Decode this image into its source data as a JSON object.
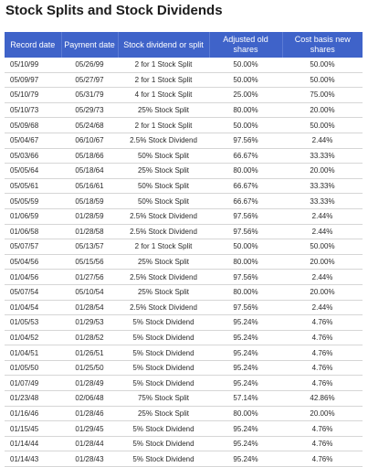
{
  "title": "Stock Splits and Stock Dividends",
  "columns": [
    "Record date",
    "Payment date",
    "Stock dividend or split",
    "Adjusted old shares",
    "Cost basis new shares"
  ],
  "rows": [
    [
      "05/10/99",
      "05/26/99",
      "2 for 1 Stock Split",
      "50.00%",
      "50.00%"
    ],
    [
      "05/09/97",
      "05/27/97",
      "2 for 1 Stock Split",
      "50.00%",
      "50.00%"
    ],
    [
      "05/10/79",
      "05/31/79",
      "4 for 1 Stock Split",
      "25.00%",
      "75.00%"
    ],
    [
      "05/10/73",
      "05/29/73",
      "25% Stock Split",
      "80.00%",
      "20.00%"
    ],
    [
      "05/09/68",
      "05/24/68",
      "2 for 1 Stock Split",
      "50.00%",
      "50.00%"
    ],
    [
      "05/04/67",
      "06/10/67",
      "2.5% Stock Dividend",
      "97.56%",
      "2.44%"
    ],
    [
      "05/03/66",
      "05/18/66",
      "50% Stock Split",
      "66.67%",
      "33.33%"
    ],
    [
      "05/05/64",
      "05/18/64",
      "25% Stock Split",
      "80.00%",
      "20.00%"
    ],
    [
      "05/05/61",
      "05/16/61",
      "50% Stock Split",
      "66.67%",
      "33.33%"
    ],
    [
      "05/05/59",
      "05/18/59",
      "50% Stock Split",
      "66.67%",
      "33.33%"
    ],
    [
      "01/06/59",
      "01/28/59",
      "2.5% Stock Dividend",
      "97.56%",
      "2.44%"
    ],
    [
      "01/06/58",
      "01/28/58",
      "2.5% Stock Dividend",
      "97.56%",
      "2.44%"
    ],
    [
      "05/07/57",
      "05/13/57",
      "2 for 1 Stock Split",
      "50.00%",
      "50.00%"
    ],
    [
      "05/04/56",
      "05/15/56",
      "25% Stock Split",
      "80.00%",
      "20.00%"
    ],
    [
      "01/04/56",
      "01/27/56",
      "2.5% Stock Dividend",
      "97.56%",
      "2.44%"
    ],
    [
      "05/07/54",
      "05/10/54",
      "25% Stock Split",
      "80.00%",
      "20.00%"
    ],
    [
      "01/04/54",
      "01/28/54",
      "2.5% Stock Dividend",
      "97.56%",
      "2.44%"
    ],
    [
      "01/05/53",
      "01/29/53",
      "5% Stock Dividend",
      "95.24%",
      "4.76%"
    ],
    [
      "01/04/52",
      "01/28/52",
      "5% Stock Dividend",
      "95.24%",
      "4.76%"
    ],
    [
      "01/04/51",
      "01/26/51",
      "5% Stock Dividend",
      "95.24%",
      "4.76%"
    ],
    [
      "01/05/50",
      "01/25/50",
      "5% Stock Dividend",
      "95.24%",
      "4.76%"
    ],
    [
      "01/07/49",
      "01/28/49",
      "5% Stock Dividend",
      "95.24%",
      "4.76%"
    ],
    [
      "01/23/48",
      "02/06/48",
      "75% Stock Split",
      "57.14%",
      "42.86%"
    ],
    [
      "01/16/46",
      "01/28/46",
      "25% Stock Split",
      "80.00%",
      "20.00%"
    ],
    [
      "01/15/45",
      "01/29/45",
      "5% Stock Dividend",
      "95.24%",
      "4.76%"
    ],
    [
      "01/14/44",
      "01/28/44",
      "5% Stock Dividend",
      "95.24%",
      "4.76%"
    ],
    [
      "01/14/43",
      "01/28/43",
      "5% Stock Dividend",
      "95.24%",
      "4.76%"
    ]
  ]
}
